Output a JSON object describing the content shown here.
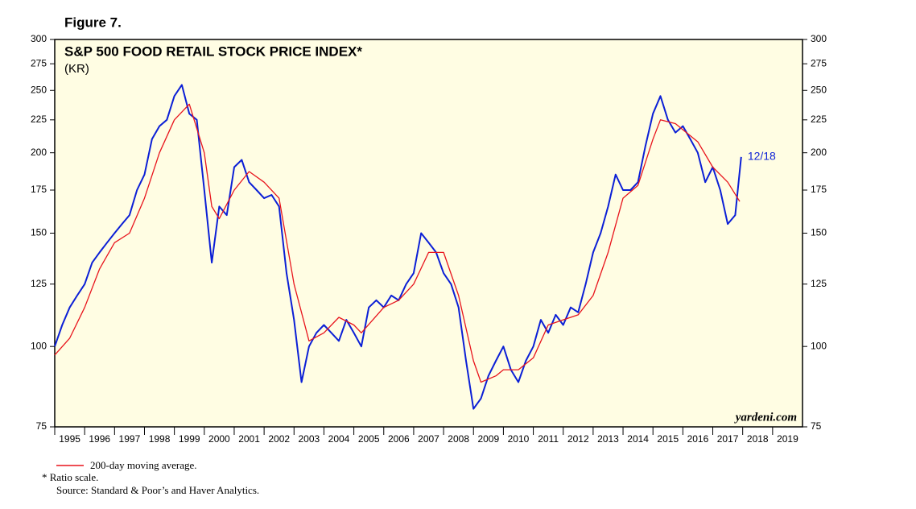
{
  "chart_data": {
    "type": "line",
    "figure_label": "Figure 7.",
    "title": "S&P 500 FOOD RETAIL STOCK PRICE INDEX*",
    "subtitle": "(KR)",
    "annotation": "12/18",
    "watermark": "yardeni.com",
    "notes": [
      "*  Ratio scale.",
      "Source: Standard & Poor’s and Haver Analytics."
    ],
    "log_scale": true,
    "background": "#fffde3",
    "xlim": [
      1995,
      2020
    ],
    "xticks": [
      1995,
      1996,
      1997,
      1998,
      1999,
      2000,
      2001,
      2002,
      2003,
      2004,
      2005,
      2006,
      2007,
      2008,
      2009,
      2010,
      2011,
      2012,
      2013,
      2014,
      2015,
      2016,
      2017,
      2018,
      2019
    ],
    "ylim": [
      75,
      300
    ],
    "yticks": [
      75,
      100,
      125,
      150,
      175,
      200,
      225,
      250,
      275,
      300
    ],
    "y2lim": [
      75,
      300
    ],
    "y2ticks": [
      75,
      100,
      125,
      150,
      175,
      200,
      225,
      250,
      275,
      300
    ],
    "series": [
      {
        "color": "#0b1fd6",
        "x": [
          1995.0,
          1995.25,
          1995.5,
          1995.75,
          1996.0,
          1996.25,
          1996.5,
          1996.75,
          1997.0,
          1997.25,
          1997.5,
          1997.75,
          1998.0,
          1998.25,
          1998.5,
          1998.75,
          1999.0,
          1999.25,
          1999.5,
          1999.75,
          2000.0,
          2000.25,
          2000.5,
          2000.75,
          2001.0,
          2001.25,
          2001.5,
          2001.75,
          2002.0,
          2002.25,
          2002.5,
          2002.75,
          2003.0,
          2003.25,
          2003.5,
          2003.75,
          2004.0,
          2004.25,
          2004.5,
          2004.75,
          2005.0,
          2005.25,
          2005.5,
          2005.75,
          2006.0,
          2006.25,
          2006.5,
          2006.75,
          2007.0,
          2007.25,
          2007.5,
          2007.75,
          2008.0,
          2008.25,
          2008.5,
          2008.75,
          2009.0,
          2009.25,
          2009.5,
          2009.75,
          2010.0,
          2010.25,
          2010.5,
          2010.75,
          2011.0,
          2011.25,
          2011.5,
          2011.75,
          2012.0,
          2012.25,
          2012.5,
          2012.75,
          2013.0,
          2013.25,
          2013.5,
          2013.75,
          2014.0,
          2014.25,
          2014.5,
          2014.75,
          2015.0,
          2015.25,
          2015.5,
          2015.75,
          2016.0,
          2016.25,
          2016.5,
          2016.75,
          2017.0,
          2017.25,
          2017.5,
          2017.75,
          2017.95
        ],
        "values": [
          100,
          108,
          115,
          120,
          125,
          135,
          140,
          145,
          150,
          155,
          160,
          175,
          185,
          210,
          220,
          225,
          245,
          255,
          230,
          225,
          175,
          135,
          165,
          160,
          190,
          195,
          180,
          175,
          170,
          172,
          165,
          130,
          110,
          88,
          100,
          105,
          108,
          105,
          102,
          110,
          105,
          100,
          115,
          118,
          115,
          120,
          118,
          125,
          130,
          150,
          145,
          140,
          130,
          125,
          115,
          95,
          80,
          83,
          90,
          95,
          100,
          92,
          88,
          95,
          100,
          110,
          105,
          112,
          108,
          115,
          113,
          125,
          140,
          150,
          165,
          185,
          175,
          175,
          180,
          205,
          230,
          245,
          225,
          215,
          220,
          210,
          200,
          180,
          190,
          175,
          155,
          160,
          197
        ]
      },
      {
        "name": "200-day moving average.",
        "color": "#e8141c",
        "x": [
          1995.0,
          1995.5,
          1996.0,
          1996.5,
          1997.0,
          1997.5,
          1998.0,
          1998.5,
          1999.0,
          1999.5,
          2000.0,
          2000.25,
          2000.5,
          2001.0,
          2001.5,
          2002.0,
          2002.5,
          2003.0,
          2003.5,
          2004.0,
          2004.5,
          2005.0,
          2005.25,
          2006.0,
          2006.5,
          2007.0,
          2007.5,
          2008.0,
          2008.5,
          2009.0,
          2009.25,
          2009.75,
          2010.0,
          2010.5,
          2011.0,
          2011.5,
          2012.0,
          2012.5,
          2013.0,
          2013.5,
          2014.0,
          2014.5,
          2015.0,
          2015.25,
          2015.75,
          2016.5,
          2017.0,
          2017.5,
          2017.9
        ],
        "values": [
          97,
          103,
          115,
          132,
          145,
          150,
          170,
          200,
          225,
          238,
          200,
          165,
          158,
          175,
          187,
          180,
          170,
          125,
          102,
          105,
          111,
          108,
          105,
          115,
          118,
          125,
          140,
          140,
          120,
          95,
          88,
          90,
          92,
          92,
          96,
          108,
          110,
          112,
          120,
          140,
          170,
          178,
          210,
          225,
          222,
          208,
          190,
          180,
          168
        ]
      }
    ]
  }
}
